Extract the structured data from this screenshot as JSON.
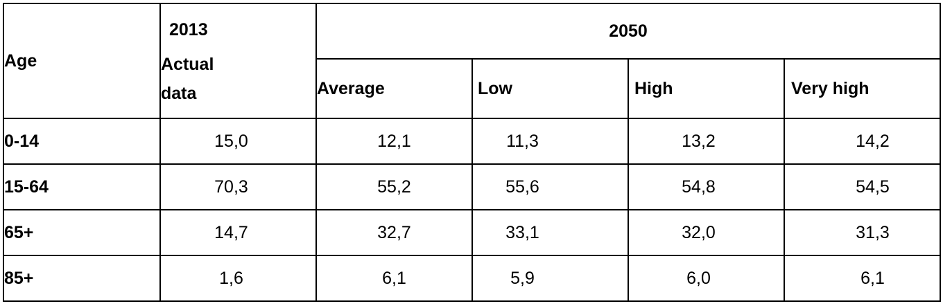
{
  "table": {
    "header": {
      "age_label": "Age",
      "actual_year": "2013",
      "actual_label": [
        "Actual",
        "data"
      ],
      "projection_year": "2050",
      "scenarios": [
        "Average",
        "Low",
        "High",
        "Very high"
      ]
    },
    "rows": [
      {
        "age": "0-14",
        "values": [
          "15,0",
          "12,1",
          "11,3",
          "13,2",
          "14,2"
        ]
      },
      {
        "age": "15-64",
        "values": [
          "70,3",
          "55,2",
          "55,6",
          "54,8",
          "54,5"
        ]
      },
      {
        "age": "65+",
        "values": [
          "14,7",
          "32,7",
          "33,1",
          "32,0",
          "31,3"
        ]
      },
      {
        "age": "85+",
        "values": [
          "1,6",
          "6,1",
          "5,9",
          "6,0",
          "6,1"
        ]
      }
    ]
  }
}
